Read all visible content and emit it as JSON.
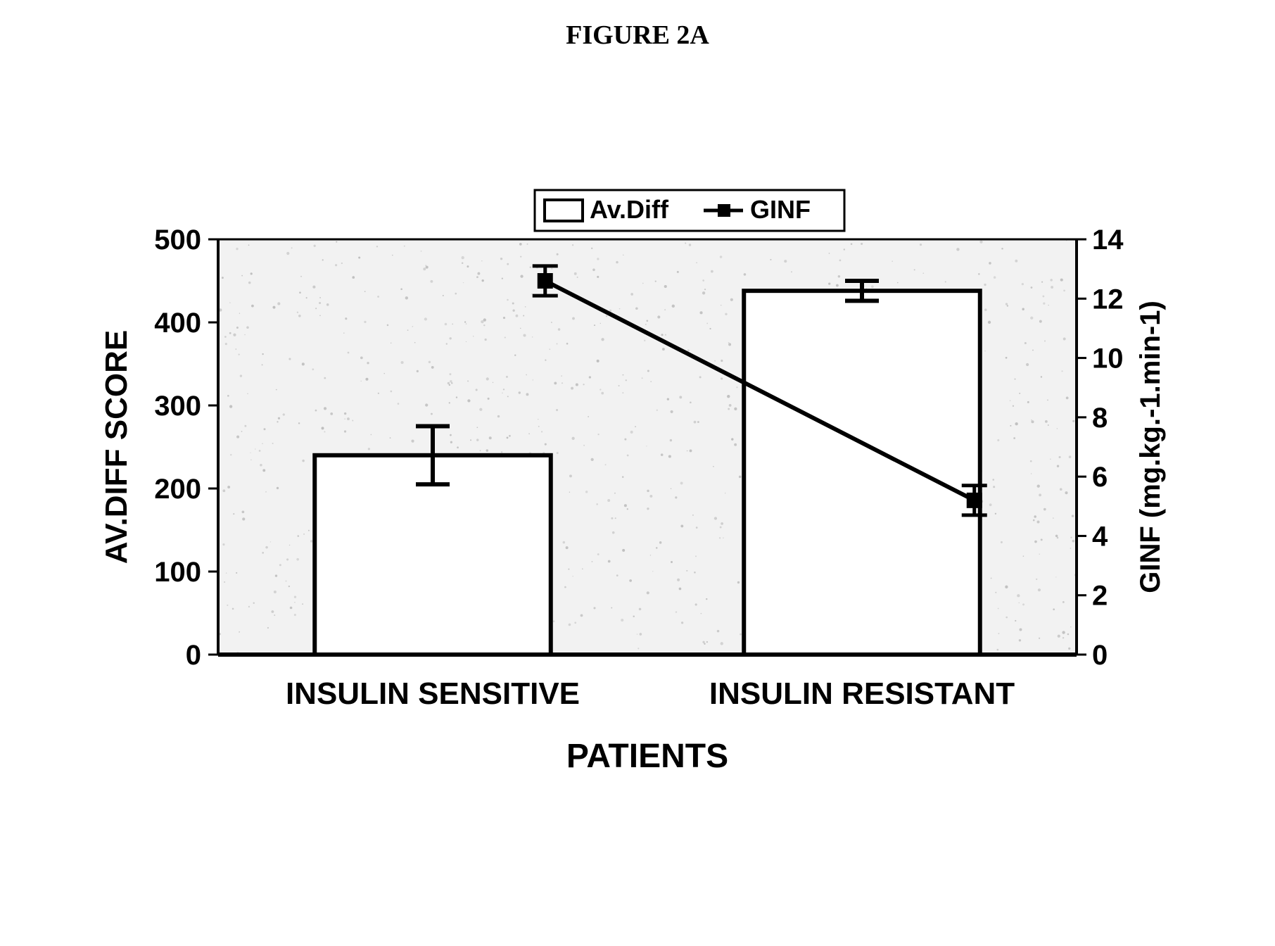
{
  "figure_title": "FIGURE 2A",
  "chart": {
    "type": "combo-bar-line-dual-axis",
    "background_color": "#ffffff",
    "plot_area_bg": "#f2f2f2",
    "plot_area_noise_color": "#a9a9a9",
    "axis_line_color": "#000000",
    "axis_line_width": 4,
    "border_line_width": 3,
    "tick_font_size": 40,
    "tick_font_weight": "bold",
    "tick_font_color": "#000000",
    "left_axis": {
      "label": "AV.DIFF SCORE",
      "min": 0,
      "max": 500,
      "ticks": [
        0,
        100,
        200,
        300,
        400,
        500
      ],
      "label_fontsize": 44,
      "label_fontweight": "bold"
    },
    "right_axis": {
      "label": "GINF (mg.kg.-1.min-1)",
      "min": 0,
      "max": 14,
      "ticks": [
        0,
        2,
        4,
        6,
        8,
        10,
        12,
        14
      ],
      "label_fontsize": 40,
      "label_fontweight": "bold"
    },
    "categories": [
      "INSULIN SENSITIVE",
      "INSULIN RESISTANT"
    ],
    "category_label_fontsize": 44,
    "x_axis_label": "PATIENTS",
    "x_axis_label_fontsize": 48,
    "bars": {
      "series_name": "Av.Diff",
      "fill_color": "#ffffff",
      "stroke_color": "#000000",
      "stroke_width": 6,
      "bar_width_ratio": 0.55,
      "values": [
        240,
        438
      ],
      "errorbar_color": "#000000",
      "errorbar_width": 6,
      "errorbar_cap": 24,
      "errors": [
        35,
        12
      ]
    },
    "line": {
      "series_name": "GINF",
      "line_color": "#000000",
      "line_width": 6,
      "marker_shape": "square",
      "marker_size": 22,
      "marker_fill": "#000000",
      "values": [
        12.6,
        5.2
      ],
      "errorbar_color": "#000000",
      "errorbar_width": 5,
      "errorbar_cap": 18,
      "errors": [
        0.5,
        0.5
      ]
    },
    "legend": {
      "border_color": "#000000",
      "border_width": 3,
      "bg_color": "#ffffff",
      "font_size": 36,
      "font_weight": "bold",
      "items": [
        {
          "label": "Av.Diff",
          "type": "bar"
        },
        {
          "label": "GINF",
          "type": "line-marker"
        }
      ]
    }
  }
}
